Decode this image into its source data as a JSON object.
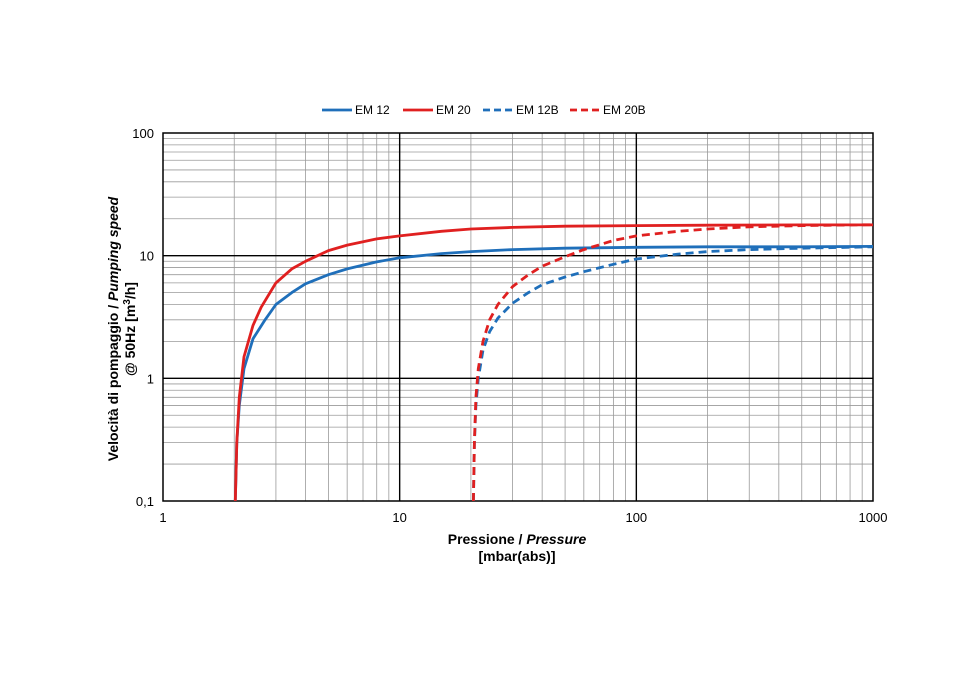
{
  "chart_data": {
    "type": "line",
    "x_scale": "log",
    "y_scale": "log",
    "xlim": [
      1,
      1000
    ],
    "ylim": [
      0.1,
      100
    ],
    "grid": true,
    "legend_position": "top",
    "xlabel": {
      "line1_normal": "Pressione / ",
      "line1_italic": "Pressure",
      "line2": "[mbar(abs)]"
    },
    "ylabel": {
      "line1_normal": "Velocità di pompaggio / ",
      "line1_italic": "Pumping speed",
      "line2_pre": "@ 50Hz [m",
      "line2_sup": "3",
      "line2_post": "/h]"
    },
    "x_ticks": [
      {
        "value": 1,
        "label": "1"
      },
      {
        "value": 10,
        "label": "10"
      },
      {
        "value": 100,
        "label": "100"
      },
      {
        "value": 1000,
        "label": "1000"
      }
    ],
    "y_ticks": [
      {
        "value": 0.1,
        "label": "0,1"
      },
      {
        "value": 1,
        "label": "1"
      },
      {
        "value": 10,
        "label": "10"
      },
      {
        "value": 100,
        "label": "100"
      }
    ],
    "series": [
      {
        "name": "EM 12",
        "color": "#1f6fba",
        "dash": false,
        "points": [
          [
            2.02,
            0.1
          ],
          [
            2.05,
            0.3
          ],
          [
            2.1,
            0.6
          ],
          [
            2.2,
            1.2
          ],
          [
            2.4,
            2.1
          ],
          [
            2.7,
            3.0
          ],
          [
            3.0,
            4.0
          ],
          [
            3.5,
            5.0
          ],
          [
            4.0,
            5.9
          ],
          [
            5.0,
            7.0
          ],
          [
            6.0,
            7.8
          ],
          [
            8.0,
            8.9
          ],
          [
            10.0,
            9.6
          ],
          [
            15.0,
            10.4
          ],
          [
            20.0,
            10.8
          ],
          [
            30.0,
            11.2
          ],
          [
            50.0,
            11.5
          ],
          [
            100.0,
            11.7
          ],
          [
            200.0,
            11.8
          ],
          [
            500.0,
            11.8
          ],
          [
            1000.0,
            11.9
          ]
        ]
      },
      {
        "name": "EM 20",
        "color": "#e02020",
        "dash": false,
        "points": [
          [
            2.02,
            0.1
          ],
          [
            2.05,
            0.3
          ],
          [
            2.1,
            0.7
          ],
          [
            2.2,
            1.5
          ],
          [
            2.4,
            2.7
          ],
          [
            2.6,
            3.8
          ],
          [
            3.0,
            6.0
          ],
          [
            3.5,
            7.8
          ],
          [
            4.0,
            9.0
          ],
          [
            5.0,
            11.0
          ],
          [
            6.0,
            12.2
          ],
          [
            8.0,
            13.7
          ],
          [
            10.0,
            14.5
          ],
          [
            15.0,
            15.8
          ],
          [
            20.0,
            16.5
          ],
          [
            30.0,
            17.0
          ],
          [
            50.0,
            17.4
          ],
          [
            100.0,
            17.6
          ],
          [
            200.0,
            17.7
          ],
          [
            500.0,
            17.8
          ],
          [
            1000.0,
            17.8
          ]
        ]
      },
      {
        "name": "EM 12B",
        "color": "#1f6fba",
        "dash": true,
        "points": [
          [
            20.5,
            0.1
          ],
          [
            20.7,
            0.3
          ],
          [
            21.0,
            0.6
          ],
          [
            21.5,
            1.0
          ],
          [
            22.5,
            1.7
          ],
          [
            24.0,
            2.4
          ],
          [
            26.0,
            3.1
          ],
          [
            30.0,
            4.1
          ],
          [
            35.0,
            5.0
          ],
          [
            40.0,
            5.8
          ],
          [
            50.0,
            6.7
          ],
          [
            60.0,
            7.4
          ],
          [
            80.0,
            8.5
          ],
          [
            100.0,
            9.4
          ],
          [
            150.0,
            10.3
          ],
          [
            200.0,
            10.8
          ],
          [
            300.0,
            11.2
          ],
          [
            500.0,
            11.5
          ],
          [
            1000.0,
            11.8
          ]
        ]
      },
      {
        "name": "EM 20B",
        "color": "#e02020",
        "dash": true,
        "points": [
          [
            20.5,
            0.1
          ],
          [
            20.7,
            0.3
          ],
          [
            21.0,
            0.7
          ],
          [
            21.5,
            1.2
          ],
          [
            22.5,
            2.0
          ],
          [
            24.0,
            3.0
          ],
          [
            26.0,
            4.0
          ],
          [
            30.0,
            5.6
          ],
          [
            35.0,
            7.0
          ],
          [
            40.0,
            8.2
          ],
          [
            50.0,
            9.8
          ],
          [
            60.0,
            11.2
          ],
          [
            80.0,
            13.3
          ],
          [
            100.0,
            14.5
          ],
          [
            150.0,
            15.8
          ],
          [
            200.0,
            16.5
          ],
          [
            300.0,
            17.2
          ],
          [
            500.0,
            17.6
          ],
          [
            1000.0,
            17.9
          ]
        ]
      }
    ]
  }
}
